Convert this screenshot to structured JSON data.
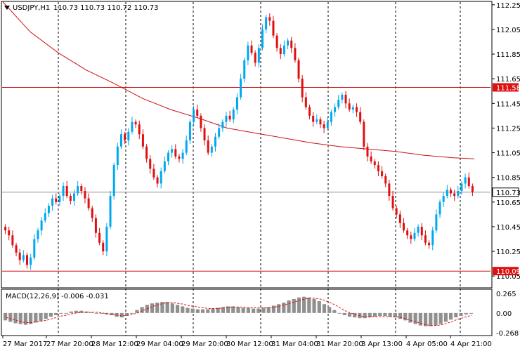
{
  "header": {
    "symbol": "USDJPY,H1",
    "ohlc": "110.73 110.73 110.72 110.73",
    "menu_icon": "triangle-down-icon"
  },
  "macd": {
    "label": "MACD(12,26,9) -0.006 -0.031",
    "scale_labels": [
      "0.265",
      "0.00",
      "-0.268"
    ]
  },
  "price_scale": {
    "labels": [
      "112.25",
      "112.05",
      "111.85",
      "111.65",
      "111.45",
      "111.25",
      "111.05",
      "110.85",
      "110.65",
      "110.45",
      "110.25",
      "110.05"
    ],
    "resistance_label": "111.58",
    "current_label": "110.73",
    "support_label": "110.09"
  },
  "time_axis": {
    "labels": [
      "27 Mar 2017",
      "27 Mar 20:00",
      "28 Mar 12:00",
      "29 Mar 04:00",
      "29 Mar 20:00",
      "30 Mar 12:00",
      "31 Mar 04:00",
      "31 Mar 20:00",
      "3 Apr 13:00",
      "4 Apr 05:00",
      "4 Apr 21:00"
    ]
  },
  "colors": {
    "bull": "#00a8f0",
    "bear": "#e01010",
    "ma": "#d01010",
    "hline_red": "#d01010",
    "hline_current": "#909090",
    "grid": "#000000",
    "histogram": "#909090",
    "signal": "#e01010",
    "badge_red": "#e01010",
    "badge_current": "#ffffff"
  },
  "chart_data": {
    "type": "candlestick",
    "symbol": "USDJPY",
    "timeframe": "H1",
    "ylim": [
      110.0,
      112.3
    ],
    "horizontal_levels": [
      111.58,
      110.73,
      110.09
    ],
    "moving_average": [
      [
        0,
        112.28
      ],
      [
        40,
        112.03
      ],
      [
        80,
        111.86
      ],
      [
        120,
        111.72
      ],
      [
        160,
        111.61
      ],
      [
        200,
        111.49
      ],
      [
        240,
        111.4
      ],
      [
        280,
        111.33
      ],
      [
        320,
        111.25
      ],
      [
        360,
        111.21
      ],
      [
        400,
        111.17
      ],
      [
        440,
        111.13
      ],
      [
        480,
        111.1
      ],
      [
        520,
        111.08
      ],
      [
        560,
        111.06
      ],
      [
        600,
        111.03
      ],
      [
        640,
        111.01
      ],
      [
        672,
        111.0
      ]
    ],
    "closes": [
      110.42,
      110.38,
      110.3,
      110.24,
      110.18,
      110.22,
      110.14,
      110.2,
      110.35,
      110.42,
      110.5,
      110.56,
      110.62,
      110.68,
      110.65,
      110.7,
      110.78,
      110.7,
      110.66,
      110.72,
      110.78,
      110.74,
      110.68,
      110.6,
      110.52,
      110.4,
      110.32,
      110.25,
      110.45,
      110.7,
      110.95,
      111.1,
      111.2,
      111.15,
      111.22,
      111.3,
      111.28,
      111.2,
      111.1,
      111.0,
      110.92,
      110.85,
      110.8,
      110.9,
      110.98,
      111.05,
      111.08,
      111.02,
      111.0,
      111.05,
      111.15,
      111.3,
      111.4,
      111.35,
      111.25,
      111.15,
      111.05,
      111.1,
      111.18,
      111.25,
      111.3,
      111.35,
      111.32,
      111.4,
      111.5,
      111.65,
      111.8,
      111.92,
      111.86,
      111.78,
      111.9,
      112.05,
      112.15,
      112.12,
      112.0,
      111.9,
      111.85,
      111.92,
      111.96,
      111.9,
      111.8,
      111.65,
      111.5,
      111.42,
      111.35,
      111.3,
      111.32,
      111.28,
      111.25,
      111.3,
      111.38,
      111.42,
      111.48,
      111.52,
      111.45,
      111.4,
      111.42,
      111.38,
      111.3,
      111.1,
      111.02,
      110.98,
      110.95,
      110.9,
      110.86,
      110.8,
      110.7,
      110.6,
      110.55,
      110.48,
      110.42,
      110.38,
      110.35,
      110.4,
      110.45,
      110.38,
      110.32,
      110.3,
      110.42,
      110.55,
      110.65,
      110.7,
      110.75,
      110.72,
      110.7,
      110.74,
      110.8,
      110.85,
      110.78,
      110.73
    ],
    "macd_range": [
      -0.268,
      0.265
    ],
    "macd_histogram": [
      -0.1,
      -0.12,
      -0.14,
      -0.15,
      -0.16,
      -0.15,
      -0.13,
      -0.11,
      -0.08,
      -0.05,
      -0.03,
      -0.01,
      0.0,
      0.02,
      0.03,
      0.03,
      0.02,
      0.01,
      0.0,
      -0.01,
      -0.02,
      -0.03,
      -0.05,
      -0.06,
      -0.04,
      0.0,
      0.04,
      0.08,
      0.11,
      0.13,
      0.14,
      0.15,
      0.15,
      0.13,
      0.11,
      0.09,
      0.07,
      0.06,
      0.05,
      0.05,
      0.05,
      0.06,
      0.07,
      0.08,
      0.09,
      0.09,
      0.08,
      0.07,
      0.07,
      0.06,
      0.06,
      0.07,
      0.08,
      0.1,
      0.12,
      0.14,
      0.17,
      0.19,
      0.21,
      0.22,
      0.21,
      0.19,
      0.16,
      0.12,
      0.08,
      0.04,
      0.0,
      -0.03,
      -0.05,
      -0.06,
      -0.07,
      -0.07,
      -0.06,
      -0.05,
      -0.04,
      -0.04,
      -0.05,
      -0.06,
      -0.08,
      -0.1,
      -0.13,
      -0.15,
      -0.17,
      -0.18,
      -0.18,
      -0.17,
      -0.15,
      -0.12,
      -0.09,
      -0.06,
      -0.04,
      -0.02,
      -0.01
    ],
    "macd_signal": [
      -0.06,
      -0.08,
      -0.1,
      -0.12,
      -0.13,
      -0.13,
      -0.12,
      -0.11,
      -0.1,
      -0.08,
      -0.06,
      -0.04,
      -0.03,
      -0.01,
      0.0,
      0.01,
      0.01,
      0.01,
      0.01,
      0.0,
      -0.01,
      -0.02,
      -0.03,
      -0.04,
      -0.03,
      -0.02,
      0.0,
      0.03,
      0.06,
      0.09,
      0.11,
      0.13,
      0.14,
      0.14,
      0.13,
      0.12,
      0.1,
      0.09,
      0.08,
      0.07,
      0.06,
      0.06,
      0.06,
      0.07,
      0.07,
      0.08,
      0.08,
      0.08,
      0.07,
      0.07,
      0.07,
      0.07,
      0.07,
      0.08,
      0.09,
      0.11,
      0.13,
      0.15,
      0.17,
      0.19,
      0.2,
      0.2,
      0.19,
      0.17,
      0.14,
      0.11,
      0.07,
      0.03,
      0.0,
      -0.02,
      -0.04,
      -0.05,
      -0.05,
      -0.05,
      -0.05,
      -0.05,
      -0.05,
      -0.05,
      -0.06,
      -0.08,
      -0.1,
      -0.12,
      -0.14,
      -0.16,
      -0.17,
      -0.17,
      -0.16,
      -0.14,
      -0.12,
      -0.09,
      -0.07,
      -0.05,
      -0.03
    ]
  }
}
